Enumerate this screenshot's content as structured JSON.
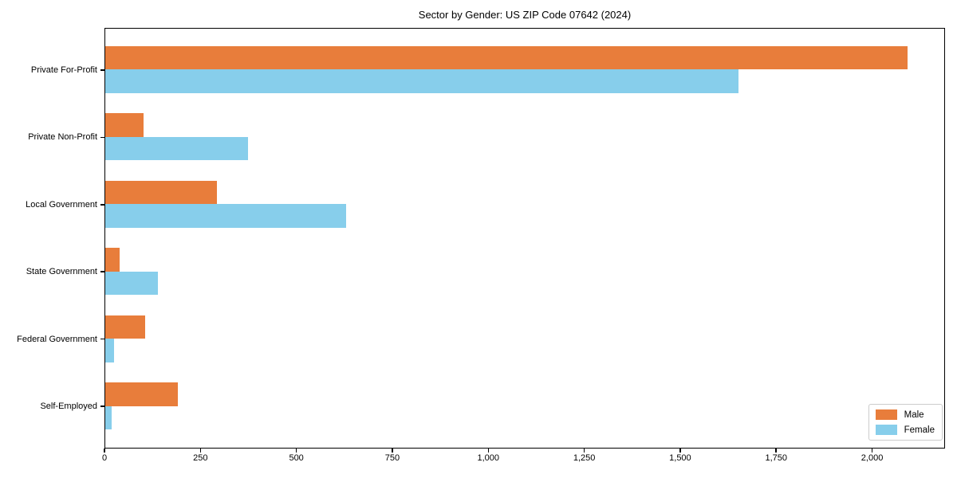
{
  "chart_data": {
    "type": "bar",
    "orientation": "horizontal",
    "title": "Sector by Gender: US ZIP Code 07642 (2024)",
    "xlabel": "",
    "ylabel": "",
    "categories": [
      "Private For-Profit",
      "Private Non-Profit",
      "Local Government",
      "State Government",
      "Federal Government",
      "Self-Employed"
    ],
    "series": [
      {
        "name": "Male",
        "color": "#e87d3b",
        "values": [
          2090,
          100,
          290,
          38,
          103,
          190
        ]
      },
      {
        "name": "Female",
        "color": "#87ceeb",
        "values": [
          1650,
          372,
          628,
          137,
          23,
          16
        ]
      }
    ],
    "xlim": [
      0,
      2190
    ],
    "xticks": [
      0,
      250,
      500,
      750,
      1000,
      1250,
      1500,
      1750,
      2000
    ],
    "xtick_labels": [
      "0",
      "250",
      "500",
      "750",
      "1,000",
      "1,250",
      "1,500",
      "1,750",
      "2,000"
    ],
    "grid": false,
    "legend": {
      "position": "lower right"
    }
  }
}
